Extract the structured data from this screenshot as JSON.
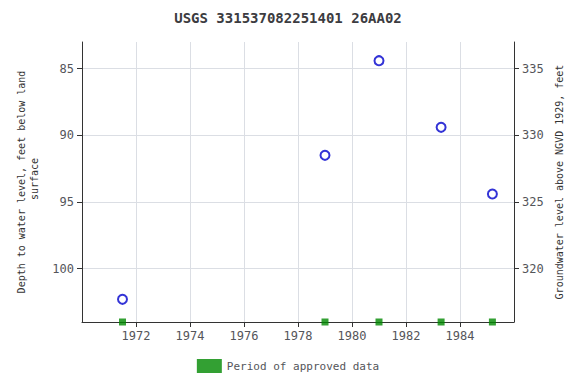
{
  "chart_data": {
    "type": "scatter",
    "title": "USGS 331537082251401 26AA02",
    "ylabel": "Depth to water level, feet below land\n surface",
    "y2label": "Groundwater level above NGVD 1929, feet",
    "x": [
      1971.5,
      1979.0,
      1981.0,
      1983.3,
      1985.2
    ],
    "series": [
      {
        "values": [
          102.3,
          91.5,
          84.4,
          89.4,
          94.4
        ],
        "color": "#0000cc",
        "marker": "hollow_circle"
      },
      {
        "name": "Period of approved data",
        "values": [
          104,
          104,
          104,
          104,
          104
        ],
        "color": "#008800",
        "marker": "square"
      }
    ],
    "xlim": [
      1970,
      1986
    ],
    "xticks": [
      1972,
      1974,
      1976,
      1978,
      1980,
      1982,
      1984
    ],
    "ylim": [
      104,
      83
    ],
    "yticks": [
      85,
      90,
      95,
      100
    ],
    "y2lim": [
      316,
      337
    ],
    "y2ticks": [
      335,
      330,
      325,
      320
    ],
    "grid": true,
    "legend": "bottom"
  }
}
